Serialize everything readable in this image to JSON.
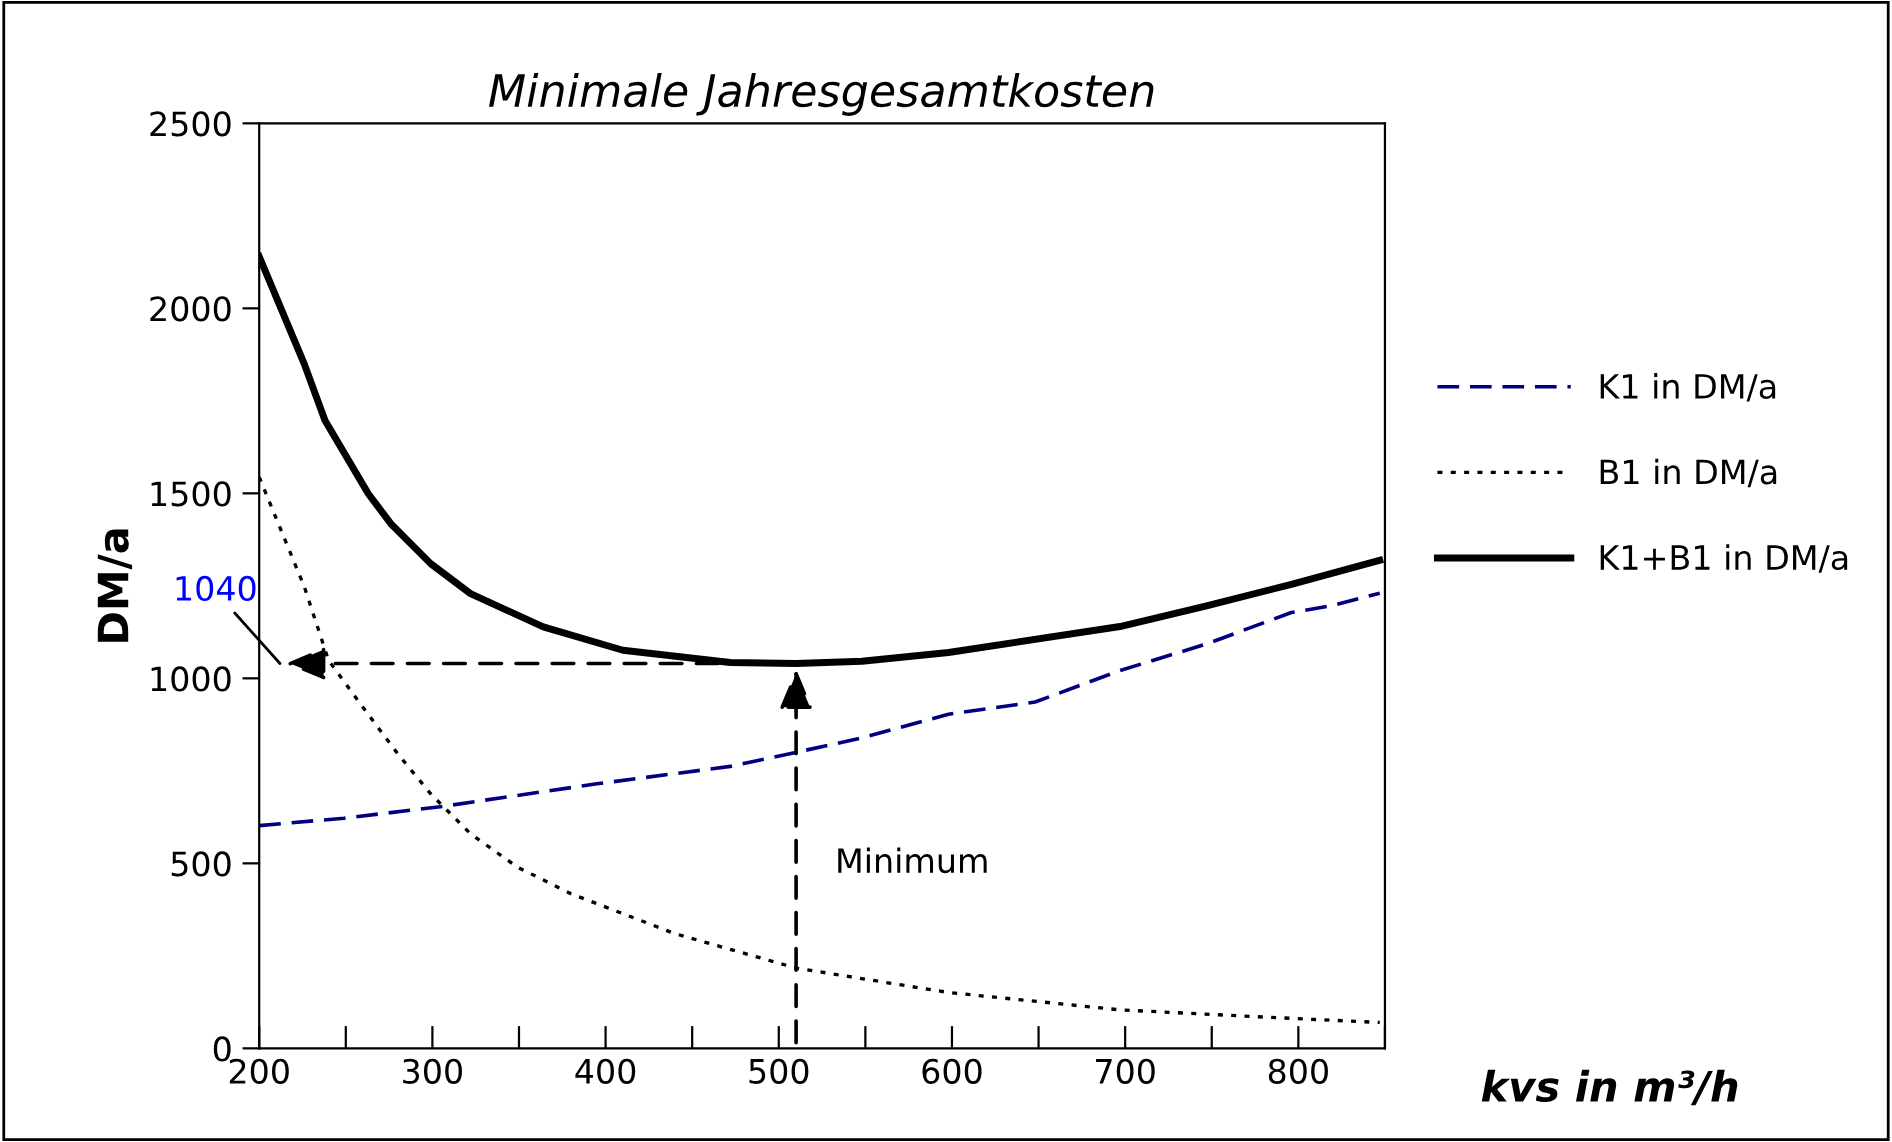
{
  "chart_data": {
    "type": "line",
    "title": "Minimale Jahresgesamtkosten",
    "xlabel": "kvs in m³/h",
    "ylabel": "DM/a",
    "xlim": [
      200,
      850
    ],
    "xticks": [
      200,
      {
        "value": 250,
        "label": null
      },
      300,
      {
        "value": 350,
        "label": null
      },
      400,
      {
        "value": 450,
        "label": null
      },
      500,
      {
        "value": 550,
        "label": null
      },
      600,
      {
        "value": 650,
        "label": null
      },
      700,
      {
        "value": 750,
        "label": null
      },
      800,
      {
        "value": 850,
        "label": null
      }
    ],
    "ylim": [
      0,
      2500
    ],
    "yticks": [
      0,
      500,
      1000,
      1500,
      2000,
      2500
    ],
    "grid": false,
    "legend": "right",
    "marker": "none",
    "annotations": [
      "1040",
      "Minimum"
    ],
    "series": [
      {
        "name": "K1 in DM/a",
        "color": "#000080",
        "line_style": "dashed",
        "x": [
          200,
          249,
          306,
          395,
          472,
          510,
          547,
          598,
          648,
          697,
          747,
          796,
          819,
          847
        ],
        "values": [
          602,
          622,
          654,
          715,
          762,
          800,
          838,
          903,
          936,
          1021,
          1093,
          1178,
          1196,
          1230
        ]
      },
      {
        "name": "B1 in DM/a",
        "color": "#000000",
        "line_style": "dotted",
        "x": [
          200,
          226,
          240,
          257,
          280,
          299,
          322,
          349,
          380,
          440,
          510,
          598,
          697,
          796,
          847
        ],
        "values": [
          1544,
          1248,
          1049,
          940,
          796,
          688,
          580,
          490,
          418,
          310,
          217,
          151,
          104,
          81,
          70
        ]
      },
      {
        "name": "K1+B1 in DM/a",
        "color": "#000000",
        "line_style": "solid",
        "x": [
          200,
          226,
          238,
          263,
          276,
          299,
          322,
          364,
          410,
          472,
          510,
          548,
          598,
          697,
          747,
          796,
          847
        ],
        "values": [
          2140,
          1850,
          1697,
          1499,
          1418,
          1310,
          1229,
          1139,
          1076,
          1043,
          1040,
          1046,
          1070,
          1140,
          1196,
          1254,
          1319
        ]
      }
    ]
  }
}
